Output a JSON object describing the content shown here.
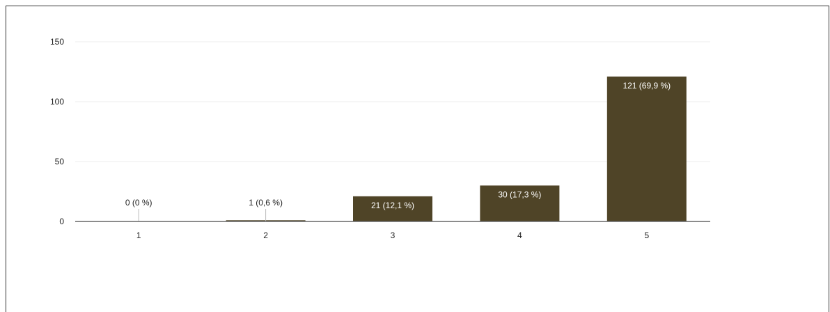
{
  "chart_data": {
    "type": "bar",
    "categories": [
      "1",
      "2",
      "3",
      "4",
      "5"
    ],
    "values": [
      0,
      1,
      21,
      30,
      121
    ],
    "data_labels": [
      "0 (0 %)",
      "1 (0,6 %)",
      "21 (12,1 %)",
      "30 (17,3 %)",
      "121 (69,9 %)"
    ],
    "y_ticks": [
      "0",
      "50",
      "100",
      "150"
    ],
    "ylim": [
      0,
      150
    ],
    "grid": true,
    "legend": "none",
    "title": "",
    "xlabel": "",
    "ylabel": "",
    "colors": {
      "bar": "#4f4427",
      "label_inside": "#ffffff",
      "label_outside": "#222222",
      "gridline": "#eeeeee",
      "axis": "#666666"
    }
  }
}
